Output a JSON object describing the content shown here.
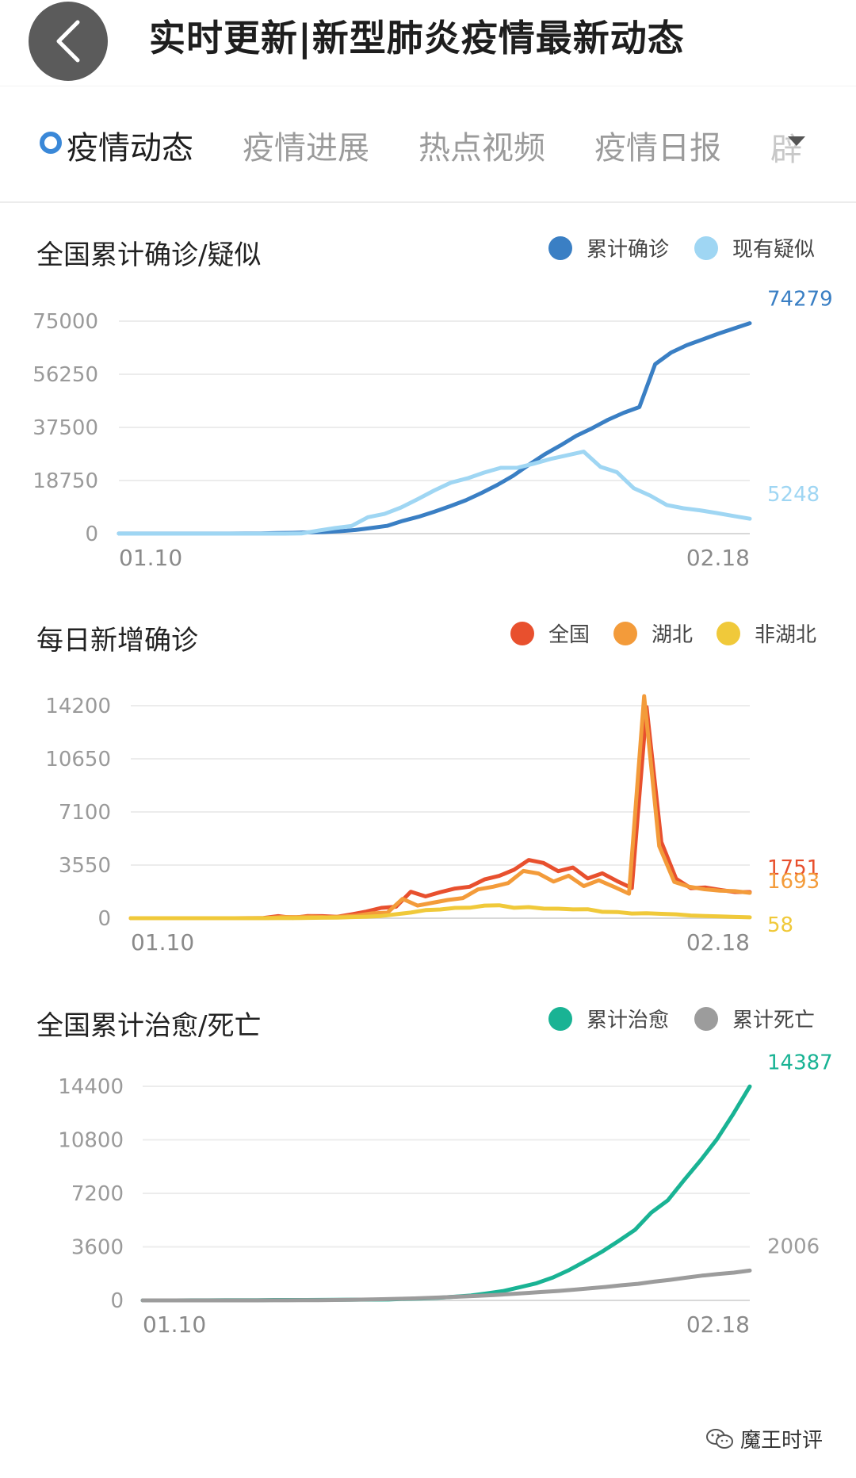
{
  "header": {
    "title": "实时更新|新型肺炎疫情最新动态"
  },
  "tabs": [
    {
      "label": "疫情动态",
      "active": true
    },
    {
      "label": "疫情进展",
      "active": false
    },
    {
      "label": "热点视频",
      "active": false
    },
    {
      "label": "疫情日报",
      "active": false
    },
    {
      "label": "辟",
      "active": false
    }
  ],
  "charts": [
    {
      "type": "line",
      "title": "全国累计确诊/疑似",
      "x_start": "01.10",
      "x_end": "02.18",
      "yticks": [
        "75000",
        "56250",
        "37500",
        "18750",
        "0"
      ],
      "ylim": [
        0,
        75000
      ],
      "series": [
        {
          "name": "累计确诊",
          "color": "#3a7fc4",
          "end_value": "74279",
          "values": [
            41,
            41,
            41,
            41,
            41,
            41,
            41,
            41,
            45,
            62,
            198,
            291,
            440,
            571,
            830,
            1287,
            1975,
            2744,
            4515,
            5974,
            7711,
            9692,
            11791,
            14380,
            17205,
            20438,
            24324,
            28018,
            31161,
            34546,
            37198,
            40171,
            42638,
            44653,
            59804,
            63851,
            66492,
            68500,
            70548,
            72436,
            74279
          ]
        },
        {
          "name": "现有疑似",
          "color": "#9fd6f3",
          "end_value": "5248",
          "values": [
            0,
            0,
            0,
            0,
            0,
            0,
            0,
            0,
            0,
            0,
            0,
            54,
            1072,
            1965,
            2684,
            5794,
            6973,
            9239,
            12167,
            15238,
            17988,
            19544,
            21558,
            23214,
            23260,
            24702,
            26359,
            27657,
            28942,
            23589,
            21675,
            16067,
            13435,
            10109,
            8969,
            8228,
            7264,
            6242,
            5248
          ]
        }
      ]
    },
    {
      "type": "line",
      "title": "每日新增确诊",
      "x_start": "01.10",
      "x_end": "02.18",
      "yticks": [
        "14200",
        "10650",
        "7100",
        "3550",
        "0"
      ],
      "ylim": [
        0,
        14200
      ],
      "series": [
        {
          "name": "全国",
          "color": "#e8502e",
          "end_value": "1751",
          "values": [
            0,
            0,
            0,
            0,
            0,
            0,
            0,
            0,
            4,
            17,
            136,
            19,
            151,
            140,
            97,
            259,
            444,
            688,
            769,
            1771,
            1459,
            1737,
            1982,
            2102,
            2590,
            2829,
            3235,
            3887,
            3694,
            3143,
            3385,
            2652,
            3000,
            2478,
            2015,
            14108,
            5090,
            2641,
            2009,
            2048,
            1886,
            1749,
            1751
          ]
        },
        {
          "name": "湖北",
          "color": "#f39b3a",
          "end_value": "1693",
          "values": [
            0,
            0,
            0,
            0,
            0,
            0,
            0,
            0,
            0,
            17,
            77,
            72,
            105,
            69,
            105,
            180,
            323,
            371,
            1291,
            840,
            1032,
            1220,
            1347,
            1921,
            2103,
            2345,
            3156,
            2987,
            2447,
            2841,
            2147,
            2531,
            2097,
            1638,
            14840,
            4823,
            2420,
            2097,
            1933,
            1843,
            1807,
            1693
          ]
        },
        {
          "name": "非湖北",
          "color": "#f0c93a",
          "end_value": "58",
          "values": [
            0,
            0,
            0,
            0,
            0,
            0,
            0,
            0,
            0,
            0,
            4,
            5,
            20,
            30,
            40,
            73,
            103,
            146,
            263,
            377,
            538,
            581,
            689,
            700,
            840,
            864,
            695,
            741,
            639,
            636,
            588,
            598,
            426,
            411,
            314,
            334,
            289,
            258,
            178,
            145,
            115,
            86,
            58
          ]
        }
      ]
    },
    {
      "type": "line",
      "title": "全国累计治愈/死亡",
      "x_start": "01.10",
      "x_end": "02.18",
      "yticks": [
        "14400",
        "10800",
        "7200",
        "3600",
        "0"
      ],
      "ylim": [
        0,
        14400
      ],
      "series": [
        {
          "name": "累计治愈",
          "color": "#19b394",
          "end_value": "14387",
          "values": [
            2,
            2,
            2,
            3,
            6,
            9,
            12,
            17,
            25,
            25,
            28,
            34,
            38,
            49,
            51,
            60,
            103,
            126,
            171,
            243,
            328,
            475,
            632,
            892,
            1153,
            1540,
            2050,
            2649,
            3281,
            3996,
            4740,
            5911,
            6723,
            8096,
            9419,
            10844,
            12552,
            14387
          ]
        },
        {
          "name": "累计死亡",
          "color": "#9c9c9c",
          "end_value": "2006",
          "values": [
            1,
            1,
            1,
            1,
            1,
            1,
            2,
            2,
            3,
            6,
            9,
            17,
            25,
            41,
            56,
            80,
            106,
            132,
            170,
            213,
            259,
            304,
            361,
            425,
            490,
            563,
            636,
            722,
            811,
            908,
            1016,
            1113,
            1259,
            1380,
            1523,
            1665,
            1770,
            1868,
            2006
          ]
        }
      ]
    }
  ],
  "watermark": {
    "text": "魔王时评"
  },
  "chart_data": [
    {
      "type": "line",
      "title": "全国累计确诊/疑似",
      "ylim": [
        0,
        75000
      ],
      "x_range": [
        "01.10",
        "02.18"
      ],
      "series": [
        {
          "name": "累计确诊",
          "last": 74279
        },
        {
          "name": "现有疑似",
          "last": 5248
        }
      ]
    },
    {
      "type": "line",
      "title": "每日新增确诊",
      "ylim": [
        0,
        14200
      ],
      "x_range": [
        "01.10",
        "02.18"
      ],
      "series": [
        {
          "name": "全国",
          "last": 1751
        },
        {
          "name": "湖北",
          "last": 1693
        },
        {
          "name": "非湖北",
          "last": 58
        }
      ]
    },
    {
      "type": "line",
      "title": "全国累计治愈/死亡",
      "ylim": [
        0,
        14400
      ],
      "x_range": [
        "01.10",
        "02.18"
      ],
      "series": [
        {
          "name": "累计治愈",
          "last": 14387
        },
        {
          "name": "累计死亡",
          "last": 2006
        }
      ]
    }
  ]
}
